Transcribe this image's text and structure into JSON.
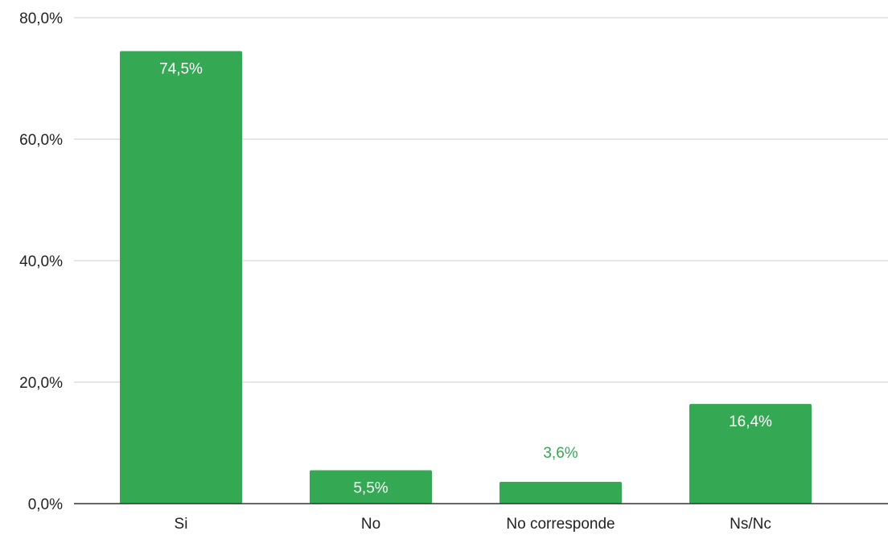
{
  "chart_data": {
    "type": "bar",
    "categories": [
      "Si",
      "No",
      "No corresponde",
      "Ns/Nc"
    ],
    "values": [
      74.5,
      5.5,
      3.6,
      16.4
    ],
    "data_labels": [
      "74,5%",
      "5,5%",
      "3,6%",
      "16,4%"
    ],
    "y_ticks": [
      0,
      20,
      40,
      60,
      80
    ],
    "y_tick_labels": [
      "0,0%",
      "20,0%",
      "40,0%",
      "60,0%",
      "80,0%"
    ],
    "ylim": [
      0,
      80
    ],
    "grid": true,
    "legend": "none",
    "colors": {
      "bar": "#34a853",
      "label_inside": "#ffffff",
      "label_outside": "#34a853",
      "gridline": "#cccccc",
      "baseline": "#333333",
      "text": "#222222"
    }
  }
}
